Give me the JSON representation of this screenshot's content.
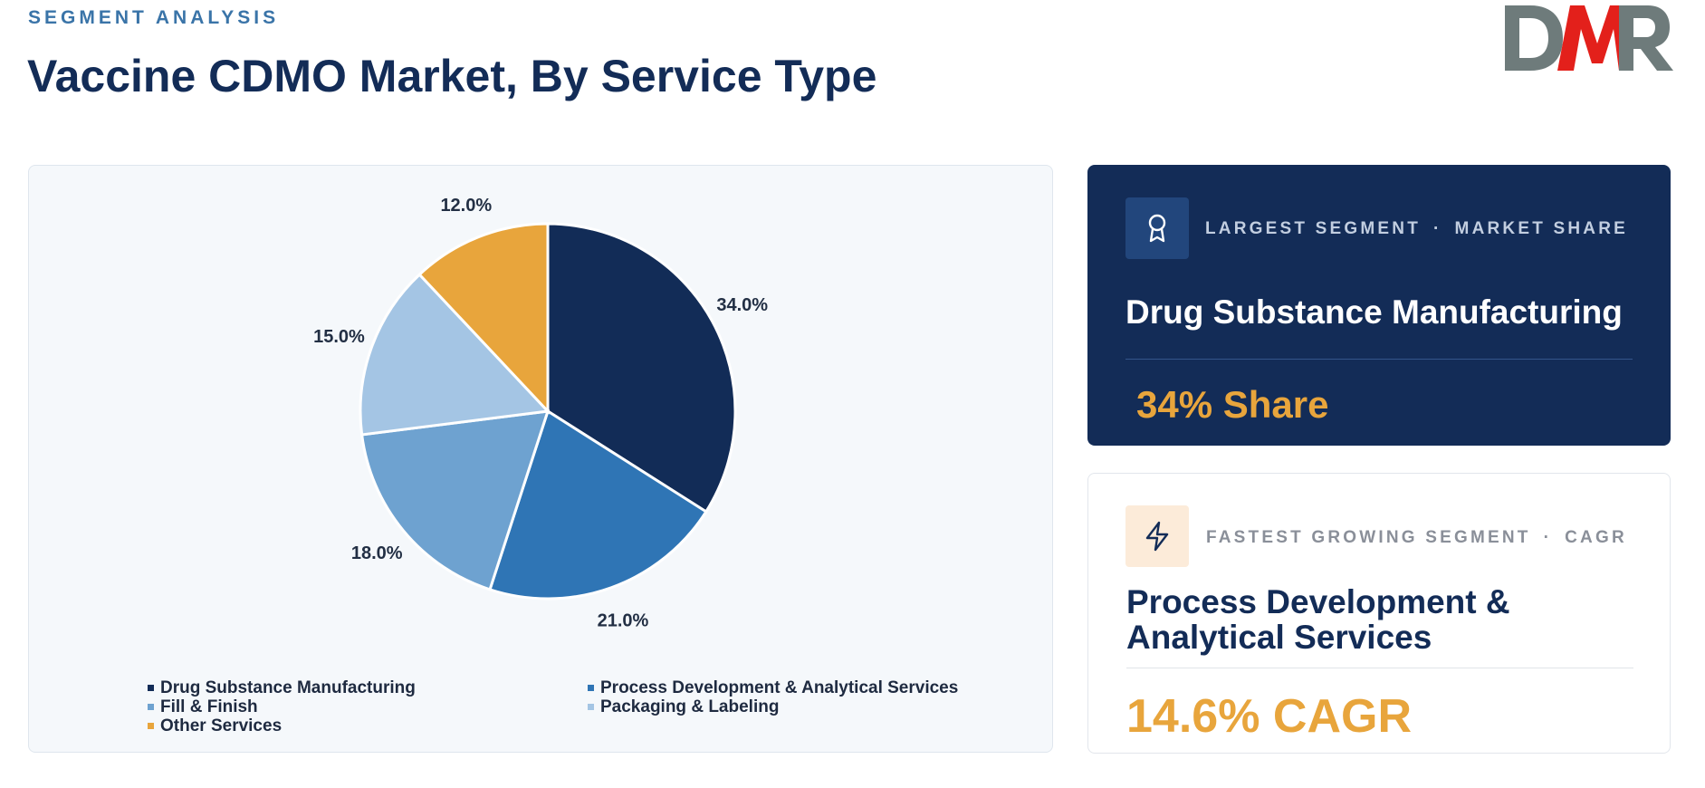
{
  "header": {
    "eyebrow": "SEGMENT ANALYSIS",
    "title": "Vaccine CDMO Market, By Service Type",
    "logo_text": "DMR"
  },
  "colors": {
    "navy": "#132c57",
    "accent": "#e8a53c",
    "logo_gray": "#6e7b7b",
    "logo_red": "#e3201b"
  },
  "chart_data": {
    "type": "pie",
    "title": "",
    "categories": [
      "Drug Substance Manufacturing",
      "Process Development & Analytical Services",
      "Fill & Finish",
      "Packaging & Labeling",
      "Other Services"
    ],
    "values": [
      34.0,
      21.0,
      18.0,
      15.0,
      12.0
    ],
    "labels": [
      "34.0%",
      "21.0%",
      "18.0%",
      "15.0%",
      "12.0%"
    ],
    "colors": [
      "#122c57",
      "#2f75b5",
      "#6ea2d0",
      "#a4c5e4",
      "#e8a53c"
    ],
    "legend_position": "bottom"
  },
  "cards": {
    "largest": {
      "label": "LARGEST SEGMENT",
      "separator": "·",
      "metric": "MARKET SHARE",
      "name": "Drug Substance Manufacturing",
      "value": "34% Share",
      "icon": "award-icon"
    },
    "fastest": {
      "label": "FASTEST GROWING SEGMENT",
      "separator": "·",
      "metric": "CAGR",
      "name": "Process Development & Analytical Services",
      "value": "14.6% CAGR",
      "icon": "lightning-icon"
    }
  }
}
